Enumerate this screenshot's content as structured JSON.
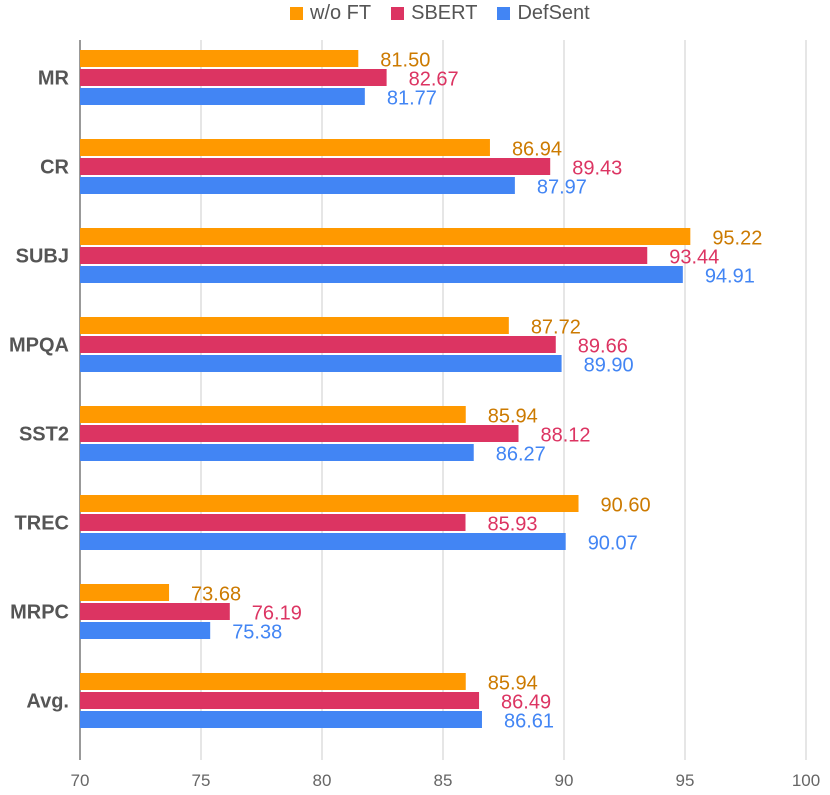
{
  "chart_data": {
    "type": "bar",
    "orientation": "horizontal",
    "categories": [
      "MR",
      "CR",
      "SUBJ",
      "MPQA",
      "SST2",
      "TREC",
      "MRPC",
      "Avg."
    ],
    "series": [
      {
        "name": "w/o FT",
        "color": "#FF9900",
        "label_color": "#CC7A00",
        "values": [
          81.5,
          86.94,
          95.22,
          87.72,
          85.94,
          90.6,
          73.68,
          85.94
        ],
        "labels": [
          "81.50",
          "86.94",
          "95.22",
          "87.72",
          "85.94",
          "90.60",
          "73.68",
          "85.94"
        ]
      },
      {
        "name": "SBERT",
        "color": "#DC3462",
        "label_color": "#DC3462",
        "values": [
          82.67,
          89.43,
          93.44,
          89.66,
          88.12,
          85.93,
          76.19,
          86.49
        ],
        "labels": [
          "82.67",
          "89.43",
          "93.44",
          "89.66",
          "88.12",
          "85.93",
          "76.19",
          "86.49"
        ]
      },
      {
        "name": "DefSent",
        "color": "#4285F4",
        "label_color": "#4285F4",
        "values": [
          81.77,
          87.97,
          94.91,
          89.9,
          86.27,
          90.07,
          75.38,
          86.61
        ],
        "labels": [
          "81.77",
          "87.97",
          "94.91",
          "89.90",
          "86.27",
          "90.07",
          "75.38",
          "86.61"
        ]
      }
    ],
    "xlim": [
      70,
      100
    ],
    "xticks": [
      "70",
      "75",
      "80",
      "85",
      "90",
      "95",
      "100"
    ],
    "xlabel": "",
    "ylabel": "",
    "title": "",
    "grid": true,
    "legend_position": "top"
  }
}
